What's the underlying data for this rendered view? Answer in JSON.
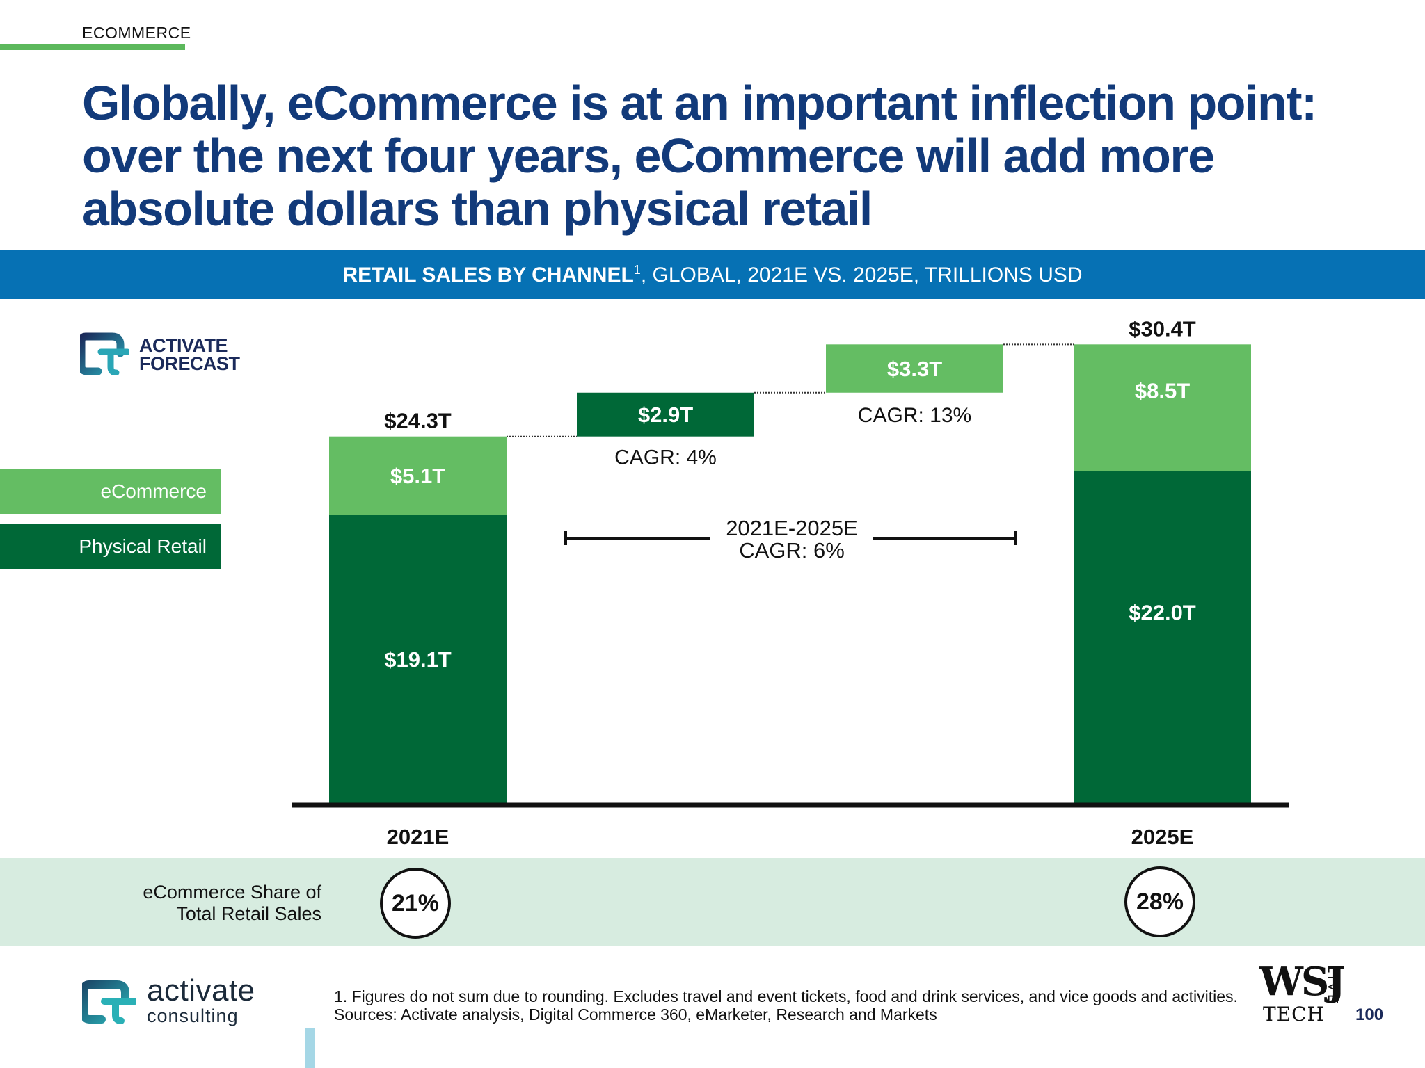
{
  "section": "ECOMMERCE",
  "title": "Globally, eCommerce is at an important inflection point: over the next four years, eCommerce will add more absolute dollars than physical retail",
  "chart_header": {
    "bold": "RETAIL SALES BY CHANNEL",
    "superscript": "1",
    "rest": ", GLOBAL, 2021E VS. 2025E, TRILLIONS USD"
  },
  "forecast_logo": {
    "line1": "ACTIVATE",
    "line2": "FORECAST"
  },
  "legend": {
    "ecommerce": "eCommerce",
    "physical": "Physical Retail"
  },
  "colors": {
    "ecommerce": "#64bd63",
    "physical": "#006837",
    "header": "#0671b4",
    "title": "#123a7a",
    "share_band": "#d7ece0"
  },
  "chart_data": {
    "type": "bar",
    "subtype": "waterfall",
    "categories": [
      "2021E",
      "2025E"
    ],
    "series": [
      {
        "name": "Physical Retail",
        "values": [
          19.1,
          22.0
        ]
      },
      {
        "name": "eCommerce",
        "values": [
          5.1,
          8.5
        ]
      }
    ],
    "totals": [
      24.3,
      30.4
    ],
    "total_labels": [
      "$24.3T",
      "$30.4T"
    ],
    "segment_labels": {
      "start_physical": "$19.1T",
      "start_ecom": "$5.1T",
      "end_physical": "$22.0T",
      "end_ecom": "$8.5T"
    },
    "increments": [
      {
        "name": "Physical Retail",
        "value": 2.9,
        "label": "$2.9T",
        "cagr": "CAGR: 4%"
      },
      {
        "name": "eCommerce",
        "value": 3.3,
        "label": "$3.3T",
        "cagr": "CAGR: 13%"
      }
    ],
    "overall_cagr": {
      "line1": "2021E-2025E",
      "line2": "CAGR: 6%"
    },
    "ylim": [
      0,
      30.4
    ]
  },
  "share": {
    "label_line1": "eCommerce Share of",
    "label_line2": "Total Retail Sales",
    "values": [
      "21%",
      "28%"
    ]
  },
  "footer": {
    "company": "activate",
    "company_sub": "consulting",
    "footnote": "1. Figures do not sum due to rounding. Excludes travel and event tickets, food and drink services, and vice goods and activities.",
    "sources": "Sources: Activate analysis, Digital Commerce 360, eMarketer, Research and Markets",
    "wsj": "WSJ",
    "wsj_tech": "TECH",
    "wsj_live": "LIVE",
    "page": "100"
  }
}
